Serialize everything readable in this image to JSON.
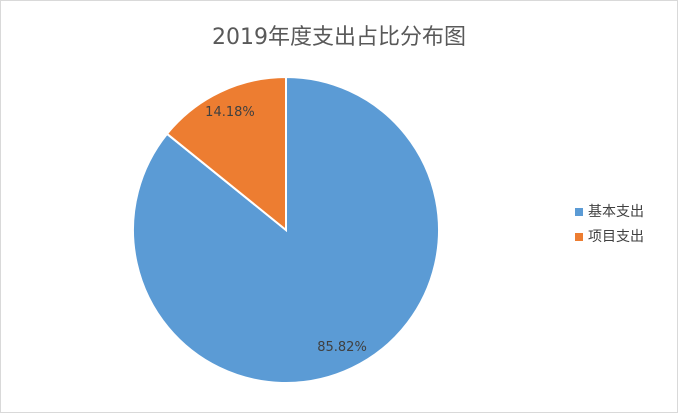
{
  "chart_data": {
    "type": "pie",
    "title": "2019年度支出占比分布图",
    "categories": [
      "基本支出",
      "项目支出"
    ],
    "values": [
      85.82,
      14.18
    ],
    "value_labels": [
      "85.82%",
      "14.18%"
    ],
    "colors": [
      "#5b9bd5",
      "#ed7d31"
    ],
    "legend": "right"
  }
}
